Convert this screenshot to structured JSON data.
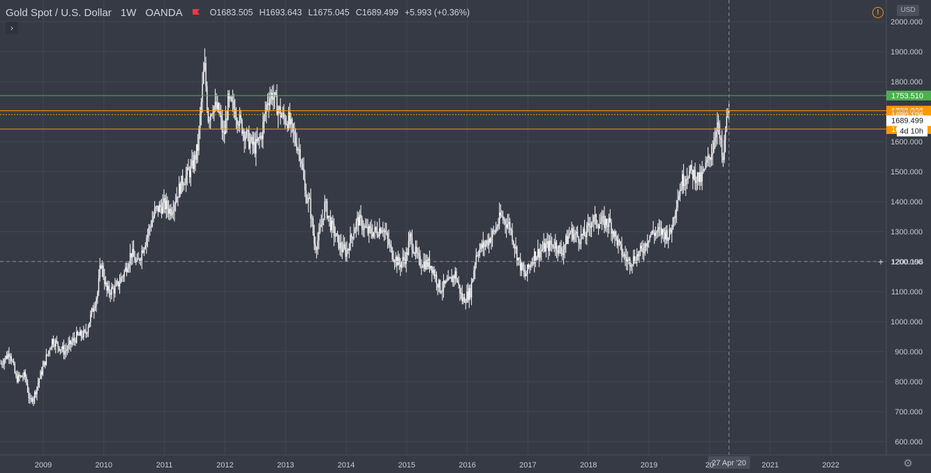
{
  "legend": {
    "symbol": "Gold Spot / U.S. Dollar",
    "interval": "1W",
    "source": "OANDA",
    "open": "O1683.505",
    "high": "H1693.643",
    "low": "L1675.045",
    "close": "C1689.499",
    "change": "+5.993 (+0.36%)",
    "currency": "USD"
  },
  "colors": {
    "background": "#363a45",
    "grid": "#434651",
    "candle": "#ffffff",
    "text": "#d1d4dc",
    "alert_green": "#4caf50",
    "alert_orange": "#ff9800",
    "flag": "#f23645"
  },
  "icons": {
    "expand": "chevron-right-icon",
    "warning": "warning-icon",
    "settings": "gear-icon",
    "flag": "flag-icon"
  },
  "chart_data": {
    "type": "candlestick",
    "x_tick_labels": [
      "2009",
      "2010",
      "2011",
      "2012",
      "2013",
      "2014",
      "2015",
      "2016",
      "2017",
      "2018",
      "2019",
      "20",
      "2021",
      "2022"
    ],
    "y_tick_labels": [
      "2000.000",
      "1900.000",
      "1800.000",
      "1700.000",
      "1600.000",
      "1500.000",
      "1400.000",
      "1300.000",
      "1200.000",
      "1100.000",
      "1000.000",
      "900.000",
      "800.000",
      "700.000",
      "600.000"
    ],
    "ylim": [
      570,
      2020
    ],
    "xlim": [
      2008.3,
      2022.9
    ],
    "grid": true,
    "crosshair": {
      "date_label": "27 Apr '20",
      "price_label": "1200.196",
      "x": 2020.32,
      "price": 1200.196
    },
    "price_lines": [
      {
        "label": "1753.510",
        "value": 1753.51,
        "style": "solid",
        "color": "#4caf50"
      },
      {
        "label": "1703.203",
        "value": 1703.203,
        "style": "solid",
        "color": "#ff9800"
      },
      {
        "label": "1690.106",
        "value": 1690.106,
        "style": "dotted",
        "color": "#ff9800"
      },
      {
        "label": "1641.856",
        "value": 1641.856,
        "style": "solid",
        "color": "#ff9800"
      }
    ],
    "last_price": {
      "label": "1689.499",
      "value": 1689.499,
      "countdown": "4d 10h"
    },
    "anchors": [
      [
        2008.3,
        860
      ],
      [
        2008.45,
        900
      ],
      [
        2008.55,
        810
      ],
      [
        2008.7,
        820
      ],
      [
        2008.78,
        730
      ],
      [
        2008.86,
        760
      ],
      [
        2008.95,
        820
      ],
      [
        2009.05,
        880
      ],
      [
        2009.15,
        940
      ],
      [
        2009.35,
        900
      ],
      [
        2009.55,
        950
      ],
      [
        2009.7,
        960
      ],
      [
        2009.9,
        1100
      ],
      [
        2009.95,
        1200
      ],
      [
        2010.05,
        1100
      ],
      [
        2010.2,
        1110
      ],
      [
        2010.35,
        1170
      ],
      [
        2010.45,
        1230
      ],
      [
        2010.55,
        1190
      ],
      [
        2010.7,
        1280
      ],
      [
        2010.85,
        1370
      ],
      [
        2011.0,
        1390
      ],
      [
        2011.1,
        1370
      ],
      [
        2011.3,
        1470
      ],
      [
        2011.45,
        1510
      ],
      [
        2011.55,
        1580
      ],
      [
        2011.62,
        1760
      ],
      [
        2011.66,
        1860
      ],
      [
        2011.72,
        1680
      ],
      [
        2011.8,
        1720
      ],
      [
        2011.9,
        1700
      ],
      [
        2011.98,
        1610
      ],
      [
        2012.05,
        1730
      ],
      [
        2012.15,
        1710
      ],
      [
        2012.3,
        1640
      ],
      [
        2012.4,
        1600
      ],
      [
        2012.5,
        1580
      ],
      [
        2012.6,
        1620
      ],
      [
        2012.7,
        1740
      ],
      [
        2012.78,
        1760
      ],
      [
        2012.85,
        1720
      ],
      [
        2012.95,
        1680
      ],
      [
        2013.05,
        1670
      ],
      [
        2013.15,
        1610
      ],
      [
        2013.25,
        1560
      ],
      [
        2013.32,
        1430
      ],
      [
        2013.4,
        1390
      ],
      [
        2013.48,
        1250
      ],
      [
        2013.55,
        1280
      ],
      [
        2013.65,
        1390
      ],
      [
        2013.75,
        1320
      ],
      [
        2013.9,
        1250
      ],
      [
        2014.0,
        1230
      ],
      [
        2014.15,
        1320
      ],
      [
        2014.2,
        1340
      ],
      [
        2014.35,
        1300
      ],
      [
        2014.5,
        1300
      ],
      [
        2014.6,
        1320
      ],
      [
        2014.75,
        1230
      ],
      [
        2014.88,
        1190
      ],
      [
        2015.0,
        1220
      ],
      [
        2015.05,
        1280
      ],
      [
        2015.2,
        1200
      ],
      [
        2015.4,
        1190
      ],
      [
        2015.55,
        1110
      ],
      [
        2015.7,
        1130
      ],
      [
        2015.8,
        1160
      ],
      [
        2015.92,
        1070
      ],
      [
        2016.05,
        1100
      ],
      [
        2016.15,
        1230
      ],
      [
        2016.3,
        1260
      ],
      [
        2016.45,
        1300
      ],
      [
        2016.55,
        1350
      ],
      [
        2016.7,
        1320
      ],
      [
        2016.85,
        1200
      ],
      [
        2016.95,
        1150
      ],
      [
        2017.1,
        1220
      ],
      [
        2017.3,
        1250
      ],
      [
        2017.45,
        1260
      ],
      [
        2017.55,
        1230
      ],
      [
        2017.7,
        1300
      ],
      [
        2017.85,
        1280
      ],
      [
        2017.95,
        1290
      ],
      [
        2018.05,
        1340
      ],
      [
        2018.2,
        1330
      ],
      [
        2018.35,
        1330
      ],
      [
        2018.45,
        1280
      ],
      [
        2018.55,
        1230
      ],
      [
        2018.65,
        1200
      ],
      [
        2018.75,
        1210
      ],
      [
        2018.9,
        1240
      ],
      [
        2019.0,
        1290
      ],
      [
        2019.15,
        1300
      ],
      [
        2019.35,
        1290
      ],
      [
        2019.45,
        1400
      ],
      [
        2019.55,
        1470
      ],
      [
        2019.65,
        1500
      ],
      [
        2019.75,
        1490
      ],
      [
        2019.85,
        1470
      ],
      [
        2020.0,
        1550
      ],
      [
        2020.05,
        1580
      ],
      [
        2020.12,
        1670
      ],
      [
        2020.18,
        1590
      ],
      [
        2020.22,
        1520
      ],
      [
        2020.26,
        1640
      ],
      [
        2020.3,
        1690
      ],
      [
        2020.33,
        1689
      ]
    ]
  }
}
